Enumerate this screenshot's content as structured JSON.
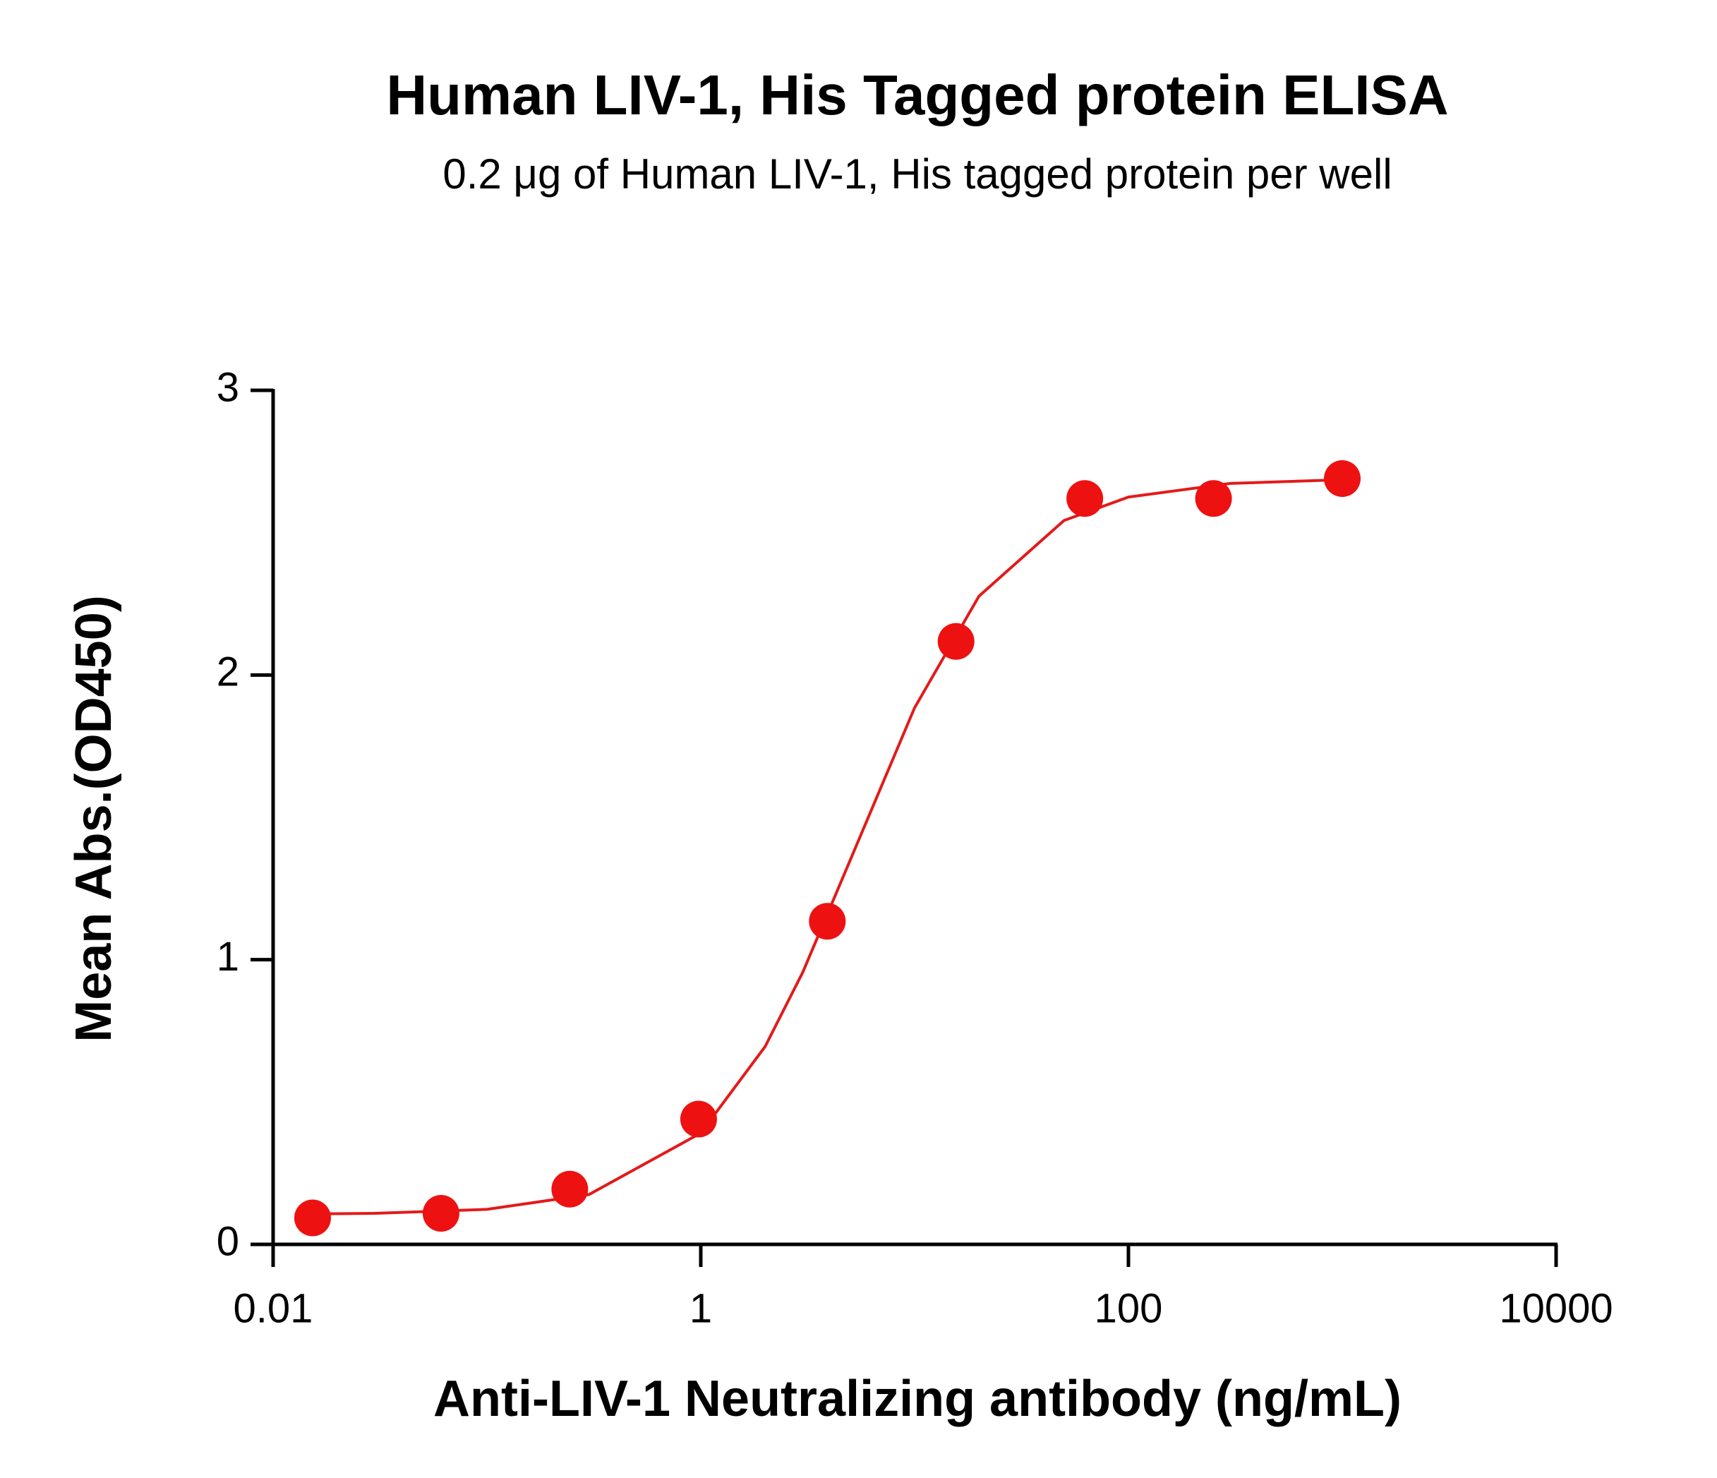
{
  "chart_data": {
    "type": "scatter",
    "title": "Human LIV-1, His Tagged protein ELISA",
    "subtitle": "0.2 μg of Human LIV-1, His tagged protein per well",
    "x_label": "Anti-LIV-1 Neutralizing antibody (ng/mL)",
    "y_label": "Mean Abs.(OD450)",
    "x_scale": "log",
    "xlim": [
      0.01,
      10000
    ],
    "xticks": [
      0.01,
      1,
      100,
      10000
    ],
    "ylim": [
      0,
      3
    ],
    "yticks": [
      0,
      1,
      2,
      3
    ],
    "grid": false,
    "series": [
      {
        "type": "scatter",
        "color": "#ee1111",
        "x": [
          0.0153,
          0.061,
          0.244,
          0.977,
          3.906,
          15.625,
          62.5,
          250,
          1000
        ],
        "values": [
          0.093,
          0.109,
          0.194,
          0.44,
          1.135,
          2.118,
          2.62,
          2.62,
          2.69
        ]
      },
      {
        "type": "line",
        "color": "#e31a1a",
        "x": [
          0.015,
          0.03,
          0.1,
          0.3,
          1,
          2,
          3,
          5,
          10,
          20,
          50,
          100,
          300,
          1000
        ],
        "values": [
          0.107,
          0.109,
          0.123,
          0.175,
          0.391,
          0.695,
          0.956,
          1.35,
          1.885,
          2.277,
          2.543,
          2.625,
          2.673,
          2.686
        ]
      }
    ]
  }
}
